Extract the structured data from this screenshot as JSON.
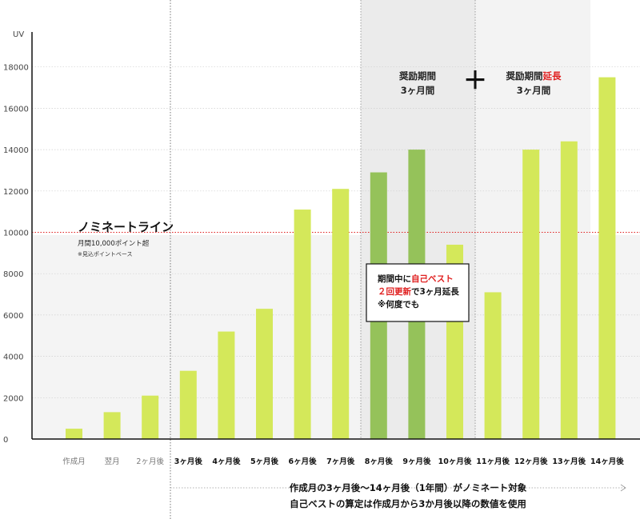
{
  "chart_data": {
    "type": "bar",
    "ylabel": "UV",
    "ylim": [
      0,
      20000
    ],
    "yticks": [
      "0",
      "2000",
      "4000",
      "6000",
      "8000",
      "10000",
      "12000",
      "14000",
      "16000",
      "18000"
    ],
    "categories": [
      "作成月",
      "翌月",
      "2ヶ月後",
      "3ヶ月後",
      "4ヶ月後",
      "5ヶ月後",
      "6ヶ月後",
      "7ヶ月後",
      "8ヶ月後",
      "9ヶ月後",
      "10ヶ月後",
      "11ヶ月後",
      "12ヶ月後",
      "13ヶ月後",
      "14ヶ月後"
    ],
    "values": [
      500,
      1300,
      2100,
      3300,
      5200,
      6300,
      11100,
      12100,
      12900,
      14000,
      9400,
      7100,
      14000,
      14400,
      17500
    ],
    "bar_colors": [
      "#d4e85a",
      "#d4e85a",
      "#d4e85a",
      "#d4e85a",
      "#d4e85a",
      "#d4e85a",
      "#d4e85a",
      "#d4e85a",
      "#95c25a",
      "#95c25a",
      "#d4e85a",
      "#d4e85a",
      "#d4e85a",
      "#d4e85a",
      "#d4e85a"
    ],
    "threshold": 10000,
    "threshold_color": "#e01e1e",
    "nomination_line": {
      "title": "ノミネートライン",
      "line1": "月間10,000ポイント超",
      "line2": "※見込ポイントベース"
    },
    "incentive_period": {
      "title": "奨励期間",
      "duration": "3ヶ月間"
    },
    "extension_period": {
      "title_prefix": "奨励期間",
      "title_highlight": "延長",
      "duration": "3ヶ月間"
    },
    "plus_symbol": "＋",
    "callout": {
      "line1_prefix": "期間中に",
      "line1_highlight": "自己ベスト",
      "line2_highlight": "２回更新",
      "line2_suffix": "で3ヶ月延長",
      "line3": "※何度でも"
    },
    "footer_line1": "作成月の3ヶ月後〜14ヶ月後（1年間）がノミネート対象",
    "footer_line2": "自己ベストの算定は作成月から3か月後以降の数値を使用",
    "highlight_color": "#e01e1e"
  }
}
